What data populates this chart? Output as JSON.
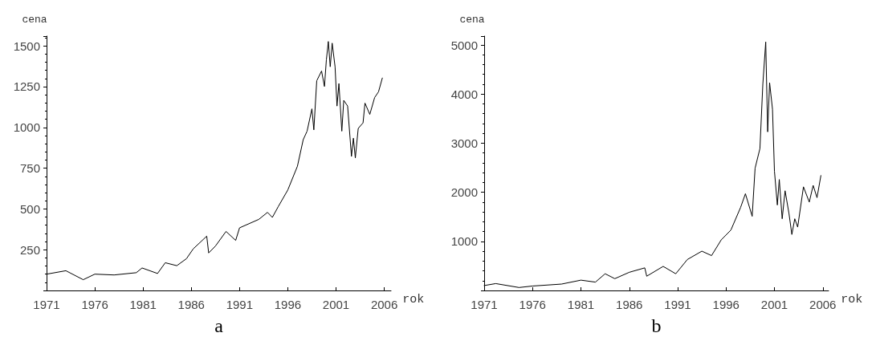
{
  "chart_data": [
    {
      "type": "line",
      "title": "a",
      "xlabel": "rok",
      "ylabel": "cena",
      "xlim": [
        1971,
        2006.7
      ],
      "ylim": [
        0,
        1560
      ],
      "xticks": [
        1971,
        1976,
        1981,
        1986,
        1991,
        1996,
        2001,
        2006
      ],
      "yticks": [
        250,
        500,
        750,
        1000,
        1250,
        1500
      ],
      "grid": false,
      "marker": "none",
      "line_style": "solid",
      "series": [
        {
          "color": "#000000",
          "x": [
            1971,
            1973,
            1974.8,
            1976,
            1978,
            1980.3,
            1980.9,
            1982.5,
            1983.3,
            1984.5,
            1985.5,
            1986.2,
            1987.6,
            1987.8,
            1988.5,
            1989.6,
            1990.6,
            1991,
            1993,
            1993.9,
            1994.4,
            1995,
            1996,
            1997,
            1997.6,
            1998,
            1998.5,
            1998.7,
            1999,
            1999.5,
            1999.8,
            2000,
            2000.2,
            2000.4,
            2000.6,
            2000.9,
            2001.1,
            2001.3,
            2001.6,
            2001.8,
            2002.2,
            2002.6,
            2002.8,
            2003,
            2003.3,
            2003.8,
            2004,
            2004.5,
            2005,
            2005.4,
            2005.8
          ],
          "values": [
            100,
            121,
            66,
            100,
            95,
            109,
            138,
            104,
            170,
            152,
            195,
            255,
            333,
            230,
            272,
            362,
            307,
            384,
            436,
            479,
            448,
            513,
            616,
            762,
            925,
            977,
            1114,
            985,
            1286,
            1346,
            1251,
            1415,
            1527,
            1372,
            1517,
            1372,
            1131,
            1269,
            977,
            1166,
            1131,
            822,
            934,
            813,
            994,
            1028,
            1149,
            1080,
            1183,
            1218,
            1303
          ]
        }
      ]
    },
    {
      "type": "line",
      "title": "b",
      "xlabel": "rok",
      "ylabel": "cena",
      "xlim": [
        1971,
        2006.6
      ],
      "ylim": [
        0,
        5180
      ],
      "xticks": [
        1971,
        1976,
        1981,
        1986,
        1991,
        1996,
        2001,
        2006
      ],
      "yticks": [
        1000,
        2000,
        3000,
        4000,
        5000
      ],
      "grid": false,
      "marker": "none",
      "line_style": "solid",
      "series": [
        {
          "color": "#000000",
          "x": [
            1971,
            1972.2,
            1974.6,
            1976,
            1979,
            1981,
            1982.5,
            1983.5,
            1984.5,
            1986,
            1987.6,
            1987.8,
            1989.5,
            1990.8,
            1992,
            1993.5,
            1994.5,
            1995.5,
            1996.5,
            1997.5,
            1998,
            1998.7,
            1999,
            1999.5,
            1999.8,
            2000.1,
            2000.3,
            2000.5,
            2000.8,
            2001,
            2001.3,
            2001.5,
            2001.8,
            2002.1,
            2002.5,
            2002.8,
            2003.1,
            2003.4,
            2004,
            2004.6,
            2005,
            2005.4,
            2005.8
          ],
          "values": [
            100,
            140,
            60,
            90,
            130,
            210,
            170,
            340,
            240,
            370,
            460,
            290,
            490,
            340,
            630,
            800,
            710,
            1030,
            1230,
            1690,
            1970,
            1510,
            2490,
            2890,
            4200,
            5060,
            3230,
            4230,
            3690,
            2430,
            1740,
            2260,
            1460,
            2030,
            1570,
            1140,
            1460,
            1290,
            2110,
            1800,
            2140,
            1890,
            2340
          ]
        }
      ]
    }
  ]
}
